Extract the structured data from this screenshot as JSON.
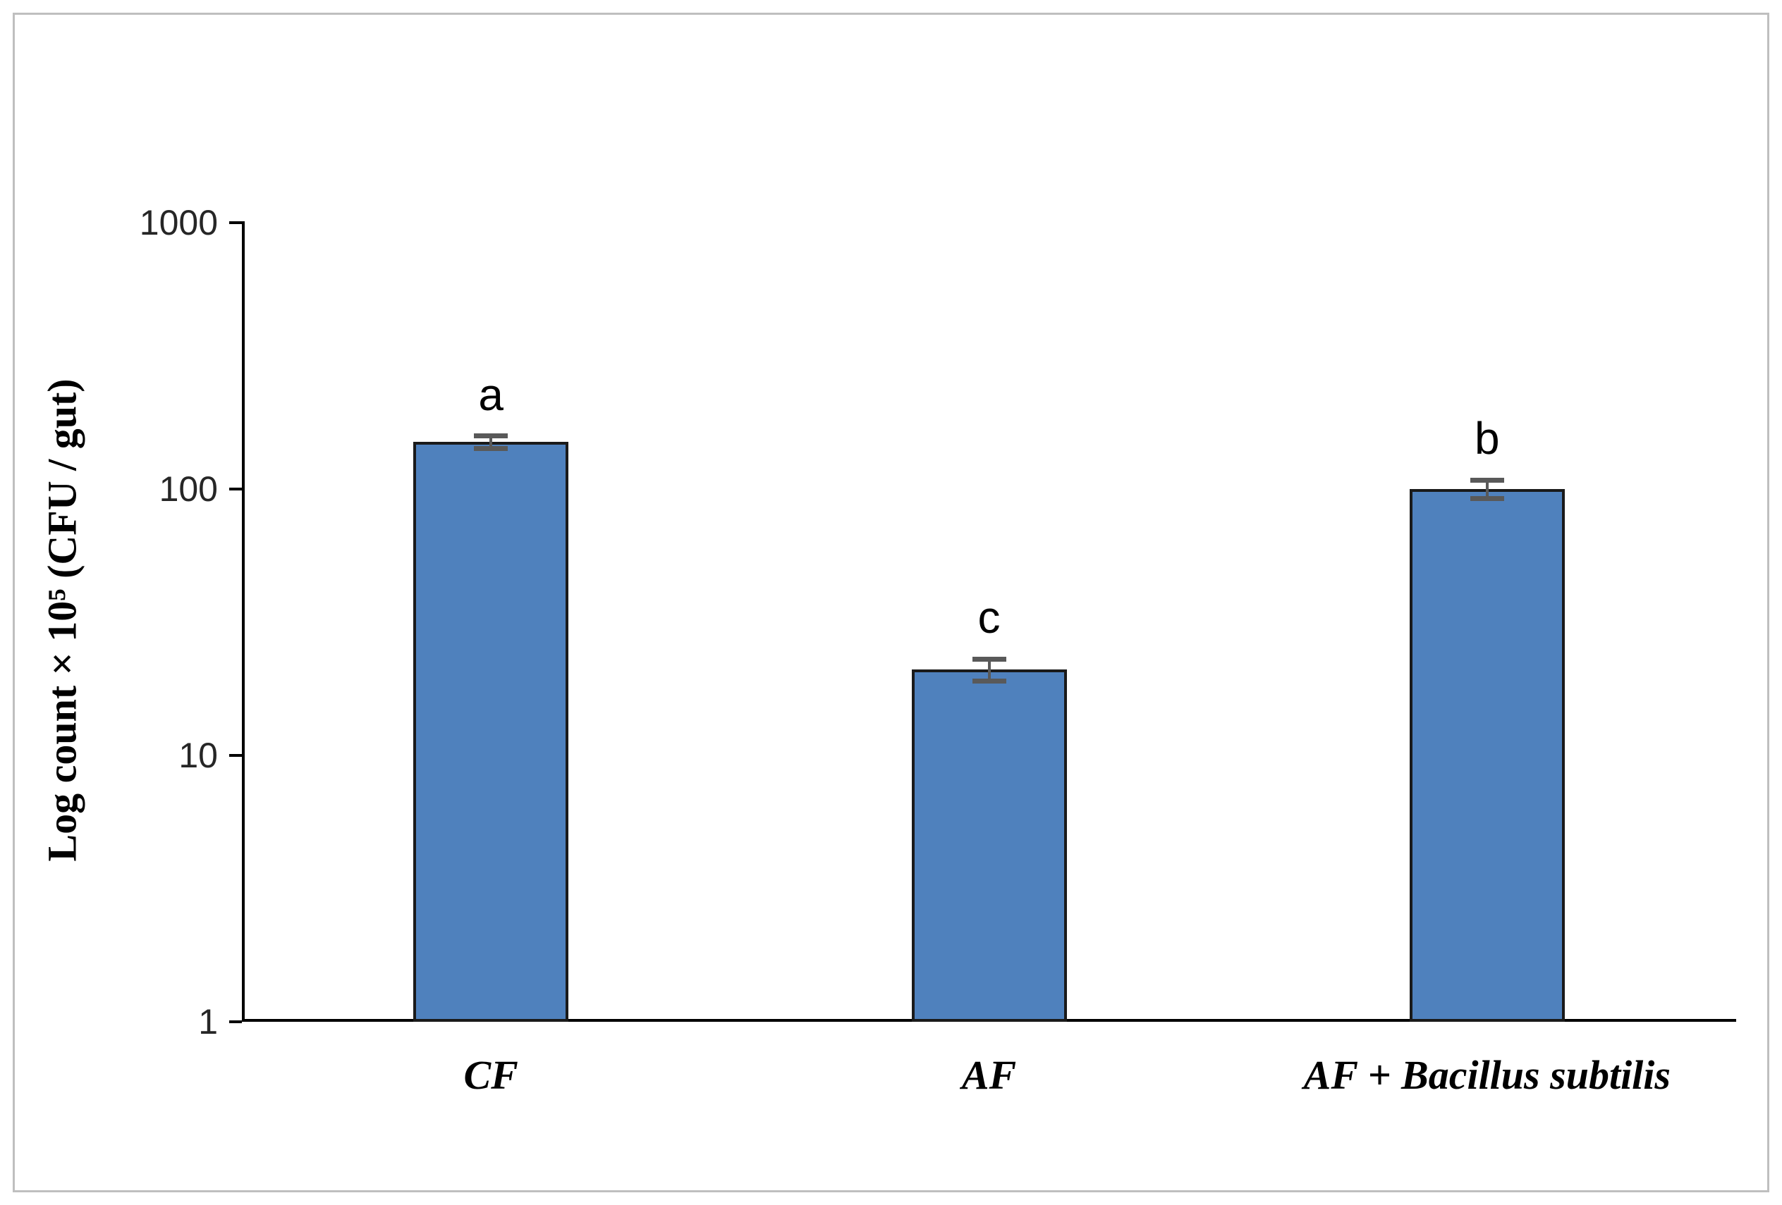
{
  "figure": {
    "background": "#ffffff",
    "frame_border_color": "#bfbfbf"
  },
  "chart_data": {
    "type": "bar",
    "title": "",
    "xlabel": "",
    "ylabel": "Log count  × 10⁵ (CFU / gut)",
    "y_scale": "log",
    "ylim": [
      1,
      1000
    ],
    "y_ticks": [
      1000,
      100,
      10,
      1
    ],
    "categories": [
      "CF",
      "AF",
      "AF + Bacillus subtilis"
    ],
    "values": [
      150,
      21,
      100
    ],
    "sig_letters": [
      "a",
      "c",
      "b"
    ],
    "error": [
      8,
      2,
      8
    ],
    "grid": false,
    "legend": false,
    "bar_color": "#4F81BD",
    "bar_border_color": "#1A1A1A",
    "error_color": "#595959",
    "axis_color": "#000000",
    "tick_label_color": "#262626"
  }
}
